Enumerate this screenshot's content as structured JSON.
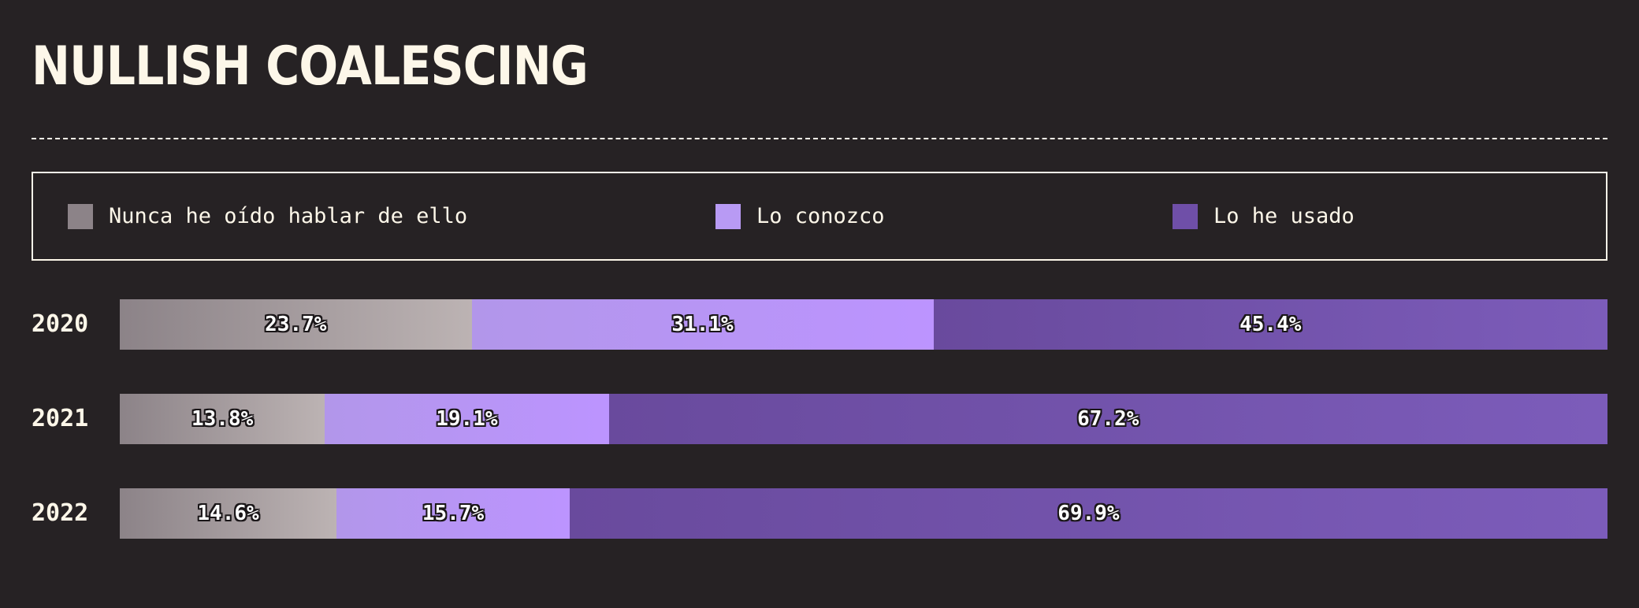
{
  "colors": {
    "background": "#262224",
    "text": "#fdf7e9",
    "never_heard": "#8c8388",
    "know_it": "#b89af4",
    "used_it": "#6f4fa8"
  },
  "chart_data": {
    "type": "bar",
    "orientation": "horizontal",
    "stacked": true,
    "title": "NULLISH COALESCING",
    "categories": [
      "2020",
      "2021",
      "2022"
    ],
    "series": [
      {
        "name": "Nunca he oído hablar de ello",
        "values": [
          23.7,
          13.8,
          14.6
        ],
        "labels": [
          "23.7%",
          "13.8%",
          "14.6%"
        ]
      },
      {
        "name": "Lo conozco",
        "values": [
          31.1,
          19.1,
          15.7
        ],
        "labels": [
          "31.1%",
          "19.1%",
          "15.7%"
        ]
      },
      {
        "name": "Lo he usado",
        "values": [
          45.4,
          67.2,
          69.9
        ],
        "labels": [
          "45.4%",
          "67.2%",
          "69.9%"
        ]
      }
    ],
    "unit": "%",
    "legend_position": "top",
    "grid": false
  }
}
